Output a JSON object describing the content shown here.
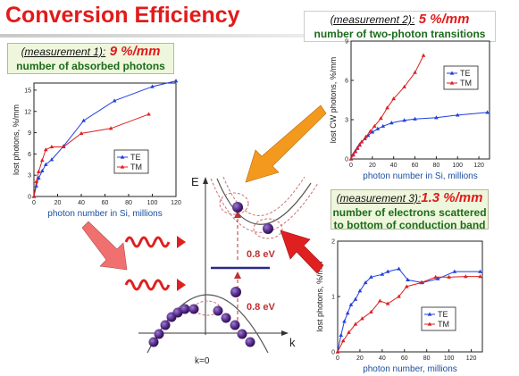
{
  "title": "Conversion Efficiency",
  "boxes": {
    "m1": {
      "label": "(measurement 1):",
      "value": "9 %/mm",
      "desc": "number of absorbed photons"
    },
    "m2": {
      "label": "(measurement 2):",
      "value": "5 %/mm",
      "desc": "number of two-photon transitions"
    },
    "m3": {
      "label": "(measurement 3):",
      "value": "1.3 %/mm",
      "desc1": "number of electrons scattered",
      "desc2": "to bottom of conduction band"
    }
  },
  "diagram": {
    "e_label": "E",
    "k_label": "k",
    "k0_label": "k=0",
    "gap_upper": "0.8 eV",
    "gap_lower": "0.8 eV"
  },
  "colors": {
    "te": "#1f3fe0",
    "tm": "#e01f1f",
    "accent": "#e21a1a",
    "box_bg": "#eef7dc",
    "arrow_orange": "#f39a1e",
    "arrow_red": "#e02020",
    "arrow_pink": "#f07070",
    "dots": "#5a2d8c",
    "level": "#2a2a8c"
  },
  "chart_data": [
    {
      "type": "line",
      "xlabel": "photon number in Si, millions",
      "ylabel": "lost photons, %/mm",
      "xlim": [
        0,
        120
      ],
      "ylim": [
        0,
        16
      ],
      "xticks": [
        0,
        20,
        40,
        60,
        80,
        100,
        120
      ],
      "yticks": [
        0,
        3,
        6,
        9,
        12,
        15
      ],
      "series": [
        {
          "name": "TE",
          "color": "#1f3fe0",
          "marker": "triangle-up",
          "x": [
            0,
            2,
            4,
            7,
            10,
            15,
            25,
            42,
            68,
            100,
            120
          ],
          "y": [
            0,
            1.5,
            2.6,
            3.6,
            4.5,
            5.2,
            7.1,
            10.7,
            13.5,
            15.5,
            16.3
          ]
        },
        {
          "name": "TM",
          "color": "#e01f1f",
          "marker": "triangle-up",
          "x": [
            0,
            2,
            4,
            7,
            10,
            15,
            25,
            40,
            65,
            97
          ],
          "y": [
            0,
            2.1,
            3.5,
            5.1,
            6.6,
            7.0,
            7.0,
            8.9,
            9.6,
            11.6
          ]
        }
      ],
      "legend": "right"
    },
    {
      "type": "line",
      "xlabel": "photon number in Si, millions",
      "ylabel": "lost CW photons, %/mm",
      "xlim": [
        0,
        130
      ],
      "ylim": [
        0,
        9
      ],
      "xticks": [
        0,
        20,
        40,
        60,
        80,
        100,
        120
      ],
      "yticks": [
        0,
        3,
        6,
        9
      ],
      "series": [
        {
          "name": "TE",
          "color": "#1f3fe0",
          "marker": "triangle-up",
          "x": [
            0,
            2,
            4,
            6,
            8,
            10,
            13,
            16,
            20,
            25,
            30,
            38,
            50,
            60,
            80,
            100,
            128
          ],
          "y": [
            0,
            0.35,
            0.6,
            0.85,
            1.1,
            1.3,
            1.55,
            1.8,
            2.05,
            2.3,
            2.5,
            2.75,
            2.95,
            3.05,
            3.15,
            3.35,
            3.55
          ]
        },
        {
          "name": "TM",
          "color": "#e01f1f",
          "marker": "triangle-up",
          "x": [
            0,
            2,
            4,
            6,
            8,
            10,
            14,
            18,
            22,
            28,
            34,
            40,
            50,
            60,
            68
          ],
          "y": [
            0,
            0.3,
            0.55,
            0.8,
            1.05,
            1.3,
            1.7,
            2.1,
            2.5,
            3.1,
            3.9,
            4.6,
            5.5,
            6.6,
            7.9
          ]
        }
      ],
      "legend": "top-right"
    },
    {
      "type": "line",
      "xlabel": "photon number, millions",
      "ylabel": "lost photons, %/mm",
      "xlim": [
        0,
        130
      ],
      "ylim": [
        0,
        2
      ],
      "xticks": [
        0,
        20,
        40,
        60,
        80,
        100,
        120
      ],
      "yticks": [
        0,
        1,
        2
      ],
      "series": [
        {
          "name": "TE",
          "color": "#1f3fe0",
          "marker": "triangle-up",
          "x": [
            0,
            3,
            6,
            9,
            12,
            16,
            20,
            25,
            30,
            40,
            45,
            55,
            63,
            76,
            90,
            105,
            128
          ],
          "y": [
            0,
            0.3,
            0.55,
            0.7,
            0.85,
            0.95,
            1.1,
            1.25,
            1.35,
            1.4,
            1.45,
            1.5,
            1.3,
            1.25,
            1.32,
            1.45,
            1.45
          ]
        },
        {
          "name": "TM",
          "color": "#e01f1f",
          "marker": "triangle-up",
          "x": [
            0,
            5,
            10,
            16,
            22,
            30,
            38,
            45,
            55,
            62,
            75,
            88,
            100,
            115,
            128
          ],
          "y": [
            0,
            0.2,
            0.35,
            0.5,
            0.6,
            0.72,
            0.92,
            0.87,
            1.0,
            1.18,
            1.25,
            1.35,
            1.35,
            1.36,
            1.36
          ]
        }
      ],
      "legend": "bottom-right"
    }
  ]
}
